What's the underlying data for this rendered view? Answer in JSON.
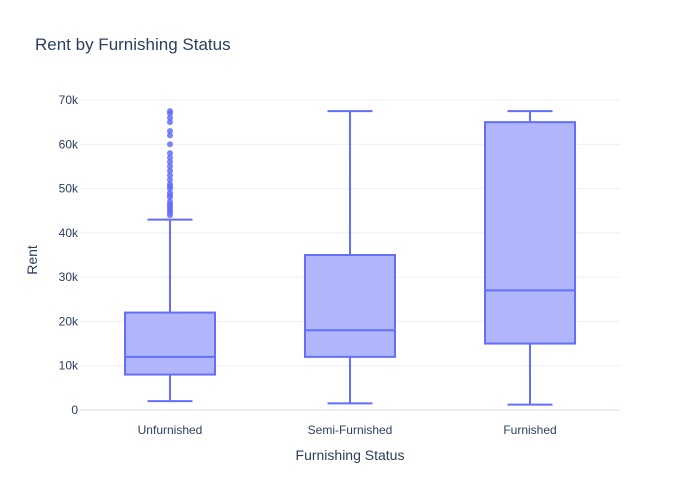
{
  "chart_data": {
    "type": "box",
    "title": "Rent by Furnishing Status",
    "xlabel": "Furnishing Status",
    "ylabel": "Rent",
    "ylim": [
      0,
      70000
    ],
    "yticks": [
      {
        "value": 0,
        "label": "0"
      },
      {
        "value": 10000,
        "label": "10k"
      },
      {
        "value": 20000,
        "label": "20k"
      },
      {
        "value": 30000,
        "label": "30k"
      },
      {
        "value": 40000,
        "label": "40k"
      },
      {
        "value": 50000,
        "label": "50k"
      },
      {
        "value": 60000,
        "label": "60k"
      },
      {
        "value": 70000,
        "label": "70k"
      }
    ],
    "grid": true,
    "color": "#636efa",
    "fill": "#b0b5fc",
    "categories": [
      "Unfurnished",
      "Semi-Furnished",
      "Furnished"
    ],
    "boxes": [
      {
        "category": "Unfurnished",
        "min": 2000,
        "q1": 8000,
        "median": 12000,
        "q3": 22000,
        "max": 43000,
        "outliers": [
          44000,
          44500,
          45000,
          45500,
          46000,
          46500,
          47000,
          48000,
          48500,
          49000,
          50000,
          50500,
          51000,
          52000,
          53000,
          54000,
          55000,
          56000,
          57000,
          58000,
          60000,
          62000,
          63000,
          65000,
          66000,
          67000,
          67500
        ]
      },
      {
        "category": "Semi-Furnished",
        "min": 1500,
        "q1": 12000,
        "median": 18000,
        "q3": 35000,
        "max": 67500,
        "outliers": []
      },
      {
        "category": "Furnished",
        "min": 1200,
        "q1": 15000,
        "median": 27000,
        "q3": 65000,
        "max": 67500,
        "outliers": []
      }
    ]
  }
}
